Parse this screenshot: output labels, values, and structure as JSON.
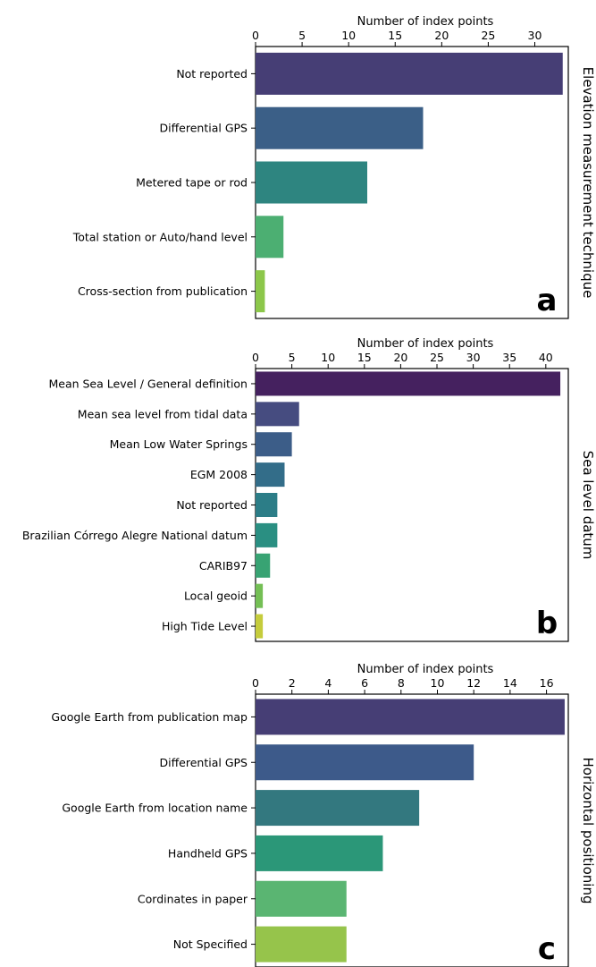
{
  "chart_data": [
    {
      "type": "bar",
      "orientation": "horizontal",
      "panel_label": "a",
      "side_label": "Elevation measurement technique",
      "xlabel": "Number of index points",
      "xaxis_position": "top",
      "xlim": [
        0,
        33.6
      ],
      "ticks": [
        0,
        5,
        10,
        15,
        20,
        25,
        30
      ],
      "categories": [
        "Not reported",
        "Differential GPS",
        "Metered tape or rod",
        "Total station or Auto/hand level",
        "Cross-section from publication"
      ],
      "values": [
        33,
        18,
        12,
        3,
        1
      ],
      "colors": [
        "#463e75",
        "#3b5f87",
        "#2e8580",
        "#4caf72",
        "#8cc74a"
      ]
    },
    {
      "type": "bar",
      "orientation": "horizontal",
      "panel_label": "b",
      "side_label": "Sea level datum",
      "xlabel": "Number of index points",
      "xaxis_position": "top",
      "xlim": [
        0,
        43.1
      ],
      "ticks": [
        0,
        5,
        10,
        15,
        20,
        25,
        30,
        35,
        40
      ],
      "categories": [
        "Mean Sea Level / General definition",
        "Mean sea level from tidal data",
        "Mean Low Water Springs",
        "EGM 2008",
        "Not reported",
        "Brazilian Córrego Alegre National datum",
        "CARIB97",
        "Local geoid",
        "High Tide Level"
      ],
      "values": [
        42,
        6,
        5,
        4,
        3,
        3,
        2,
        1,
        1
      ],
      "colors": [
        "#45215f",
        "#464c80",
        "#3c5d88",
        "#336d89",
        "#2c7d87",
        "#2a8f82",
        "#38a373",
        "#74bf55",
        "#c5cc3c"
      ]
    },
    {
      "type": "bar",
      "orientation": "horizontal",
      "panel_label": "c",
      "side_label": "Horizontal positioning",
      "xlabel": "Number of index points",
      "xaxis_position": "top",
      "xlim": [
        0,
        17.2
      ],
      "ticks": [
        0,
        2,
        4,
        6,
        8,
        10,
        12,
        14,
        16
      ],
      "categories": [
        "Google Earth from publication map",
        "Differential GPS",
        "Google Earth from location name",
        "Handheld GPS",
        "Cordinates in paper",
        "Not Specified"
      ],
      "values": [
        17,
        12,
        9,
        7,
        5,
        5
      ],
      "colors": [
        "#463e75",
        "#3d5a8a",
        "#33787f",
        "#2b9778",
        "#5ab572",
        "#96c44b"
      ]
    }
  ]
}
